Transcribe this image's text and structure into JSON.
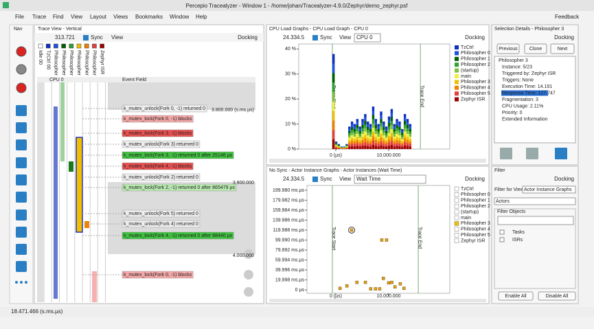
{
  "window": {
    "title": "Percepio Tracealyzer - Window 1 - /home/johan/Tracealyzer-4.9.0/Zephyr/demo_zephyr.psf",
    "menu": [
      "File",
      "Trace",
      "Find",
      "View",
      "Layout",
      "Views",
      "Bookmarks",
      "Window",
      "Help"
    ],
    "feedback": "Feedback",
    "status": "18.471.466 (s.ms.µs)"
  },
  "trace_view": {
    "tab": "Nav",
    "title": "Trace View - Vertical",
    "zoom": "313.721",
    "sync": "Sync",
    "view": "View",
    "docking": "Docking",
    "columns": [
      "Idle 00",
      "TzCtrl 00",
      "Philosopher 0",
      "Philosopher 1",
      "Philosopher 2",
      "Philosopher 3",
      "Philosopher 4",
      "Philosopher 5",
      "Zephyr ISR"
    ],
    "cpu": "CPU 0",
    "event_field": "Event Field",
    "ruler": [
      "3.800.000 (s.ms.µs)",
      "3.900.000",
      "4.000.000"
    ],
    "events": [
      "k_mutex_unlock(Fork 0, -1) returned 0",
      "k_mutex_lock(Fork 0, -1) blocks",
      "k_mutex_lock(Fork 3, -1) blocks",
      "k_mutex_unlock(Fork 3) returned 0",
      "k_mutex_lock(Fork 3, -1) returned 0 after 25146 µs",
      "k_mutex_lock(Fork 4, -1) blocks",
      "k_mutex_unlock(Fork 2) returned 0",
      "k_mutex_lock(Fork 2, -1) returned 0 after 865479 µs",
      "k_mutex_unlock(Fork 5) returned 0",
      "k_mutex_unlock(Fork 4) returned 0",
      "k_mutex_lock(Fork 4, -1) returned 0 after 88440 µs",
      "k_mutex_lock(Fork 0, -1) blocks"
    ]
  },
  "cpu_load": {
    "title": "CPU Load Graphs - CPU Load Graph - CPU 0",
    "zoom": "24.334.5",
    "sync": "Sync",
    "view": "View",
    "cpu": "CPU 0",
    "docking": "Docking",
    "trace_start": "Trace Start",
    "trace_end": "Trace End",
    "ylim": [
      0,
      42
    ],
    "yticks": [
      {
        "value": 40,
        "label": "40 %"
      },
      {
        "value": 30,
        "label": "30 %"
      },
      {
        "value": 20,
        "label": "20 %"
      },
      {
        "value": 10,
        "label": "10 %"
      },
      {
        "value": 0,
        "label": "0 %"
      }
    ],
    "xlim": [
      -7010000,
      21560000
    ],
    "xticks": [
      {
        "value": 0,
        "label": "0 (µs)"
      },
      {
        "value": 10000000,
        "label": "10.000.000"
      }
    ],
    "bins": [
      -650000,
      -150000,
      350000,
      850000,
      1350000,
      1850000,
      2350000,
      2850000,
      3350000,
      3850000,
      4350000,
      4850000,
      5350000,
      5850000,
      6350000,
      6850000,
      7350000,
      7850000,
      8350000,
      8850000,
      9350000,
      9850000,
      10350000,
      10850000,
      11350000,
      11850000,
      12350000,
      12850000,
      13350000,
      13850000,
      14350000
    ],
    "values": [
      38,
      3,
      2,
      1,
      1,
      2,
      9,
      11,
      10,
      12,
      9,
      12,
      14,
      11,
      10,
      17,
      12,
      10,
      15,
      11,
      9,
      13,
      16,
      10,
      12,
      11,
      8,
      14,
      12,
      10
    ],
    "legend": [
      {
        "name": "TzCtrl",
        "color": "#1030c0"
      },
      {
        "name": "Philosopher 0",
        "color": "#2050e0"
      },
      {
        "name": "Philosopher 1",
        "color": "#006000"
      },
      {
        "name": "Philosopher 2",
        "color": "#30a030"
      },
      {
        "name": "(startup)",
        "color": "#80c040"
      },
      {
        "name": "main",
        "color": "#f0f040"
      },
      {
        "name": "Philosopher 3",
        "color": "#f0c000"
      },
      {
        "name": "Philosopher 4",
        "color": "#f08000"
      },
      {
        "name": "Philosopher 5",
        "color": "#e04040"
      },
      {
        "name": "Zephyr ISR",
        "color": "#a00000"
      }
    ]
  },
  "wait_graph": {
    "title": "No Sync - Actor Instance Graphs - Actor Instances (Wait Time)",
    "zoom": "24.334.5",
    "sync": "Sync",
    "view": "View",
    "metric": "Wait Time",
    "docking": "Docking",
    "trace_start": "Trace Start",
    "trace_end": "Trace End",
    "ylim": [
      -6.9,
      209.6
    ],
    "yticks": [
      {
        "value": 199.98,
        "label": "199.980 ms.µs"
      },
      {
        "value": 179.982,
        "label": "179.982 ms.µs"
      },
      {
        "value": 159.984,
        "label": "159.984 ms.µs"
      },
      {
        "value": 139.986,
        "label": "139.986 ms.µs"
      },
      {
        "value": 119.988,
        "label": "119.988 ms.µs"
      },
      {
        "value": 99.99,
        "label": "99.990 ms.µs"
      },
      {
        "value": 79.992,
        "label": "79.992 ms.µs"
      },
      {
        "value": 59.994,
        "label": "59.994 ms.µs"
      },
      {
        "value": 39.996,
        "label": "39.996 ms.µs"
      },
      {
        "value": 19.998,
        "label": "19.998 ms.µs"
      },
      {
        "value": 0,
        "label": "0 µs"
      }
    ],
    "xlim": [
      -5450000,
      21560000
    ],
    "xticks": [
      {
        "value": 0,
        "label": "0 (µs)"
      },
      {
        "value": 10000000,
        "label": "10.000.000"
      }
    ],
    "x": [
      800000,
      2100000,
      3000000,
      4000000,
      5600000,
      6600000,
      7500000,
      8300000,
      8700000,
      9000000,
      9600000,
      10000000,
      10600000,
      11200000,
      12200000,
      12900000
    ],
    "values": [
      3,
      8,
      120,
      15,
      15,
      2,
      2,
      2,
      100,
      23,
      100,
      14,
      15,
      6,
      12,
      3
    ],
    "legend": [
      "TzCtrl",
      "Philosopher 0",
      "Philosopher 1",
      "Philosopher 2",
      "(startup)",
      "main",
      "Philosopher 3",
      "Philosopher 4",
      "Philosopher 5",
      "Zephyr ISR"
    ]
  },
  "selection": {
    "title": "Selection Details - Philosopher 3",
    "docking": "Docking",
    "buttons": [
      "Previous",
      "Clone",
      "Next"
    ],
    "tree": [
      "Philosopher 3",
      "Instance: 5/23",
      "Triggered by: Zephyr ISR",
      "Triggers: None",
      "Execution Time: 14.191",
      "Response Time: 127.747",
      "Fragmentation: 3",
      "CPU Usage: 2.11%",
      "Priority: 0",
      "Extended Information"
    ]
  },
  "filter": {
    "title": "Filter",
    "docking": "Docking",
    "filter_for_view": "Filter for View",
    "view_choice": "Actor Instance Graphs",
    "kind_choice": "Actors",
    "objects": "Filter Objects",
    "items": [
      "Tasks",
      "ISRs"
    ],
    "enable_all": "Enable All",
    "disable_all": "Disable All"
  }
}
